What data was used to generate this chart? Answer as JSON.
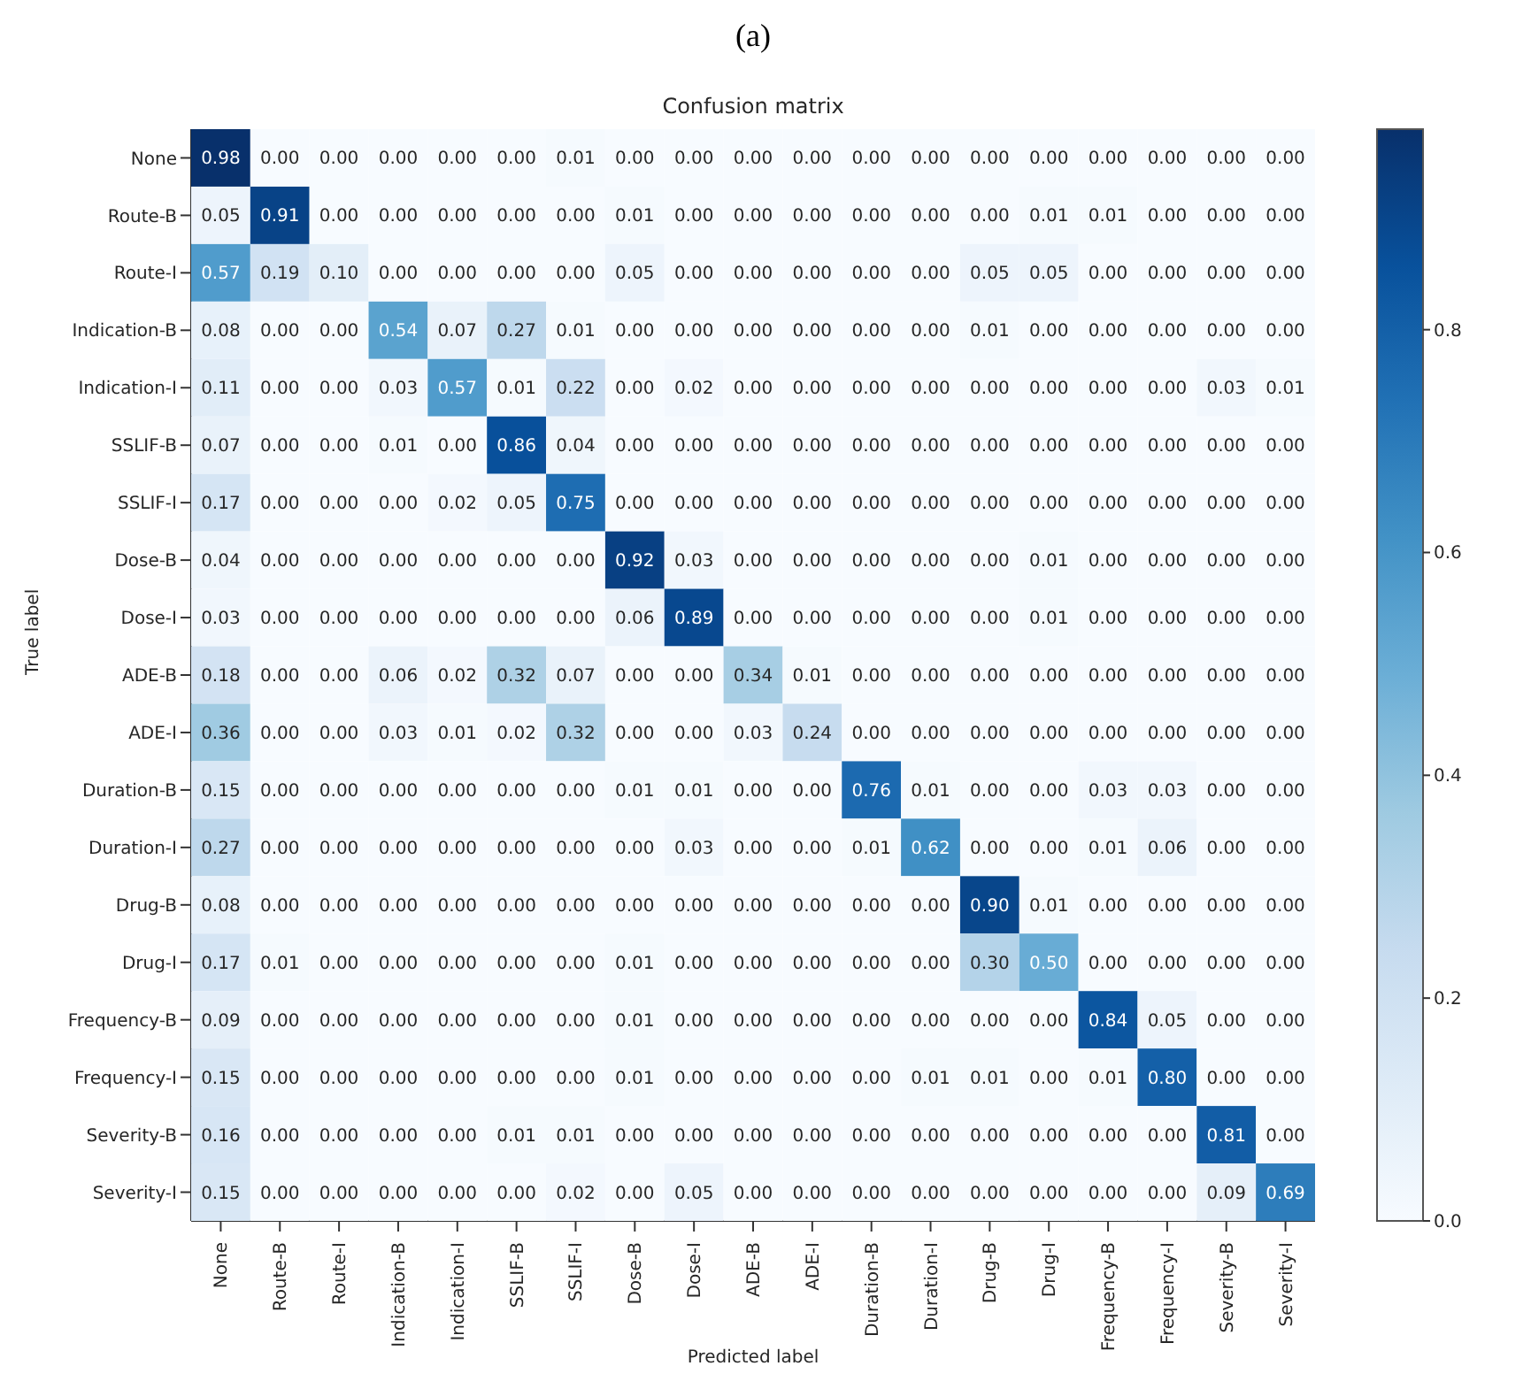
{
  "chart_data": {
    "type": "heatmap",
    "title": "Confusion matrix",
    "xlabel": "Predicted label",
    "ylabel": "True label",
    "annotations": [
      "(a)"
    ],
    "categories": [
      "None",
      "Route-B",
      "Route-I",
      "Indication-B",
      "Indication-I",
      "SSLIF-B",
      "SSLIF-I",
      "Dose-B",
      "Dose-I",
      "ADE-B",
      "ADE-I",
      "Duration-B",
      "Duration-I",
      "Drug-B",
      "Drug-I",
      "Frequency-B",
      "Frequency-I",
      "Severity-B",
      "Severity-I"
    ],
    "y_categories": [
      "None",
      "Route-B",
      "Route-I",
      "Indication-B",
      "Indication-I",
      "SSLIF-B",
      "SSLIF-I",
      "Dose-B",
      "Dose-I",
      "ADE-B",
      "ADE-I",
      "Duration-B",
      "Duration-I",
      "Drug-B",
      "Drug-I",
      "Frequency-B",
      "Frequency-I",
      "Severity-B",
      "Severity-I"
    ],
    "cells": [
      [
        0.98,
        0.0,
        0.0,
        0.0,
        0.0,
        0.0,
        0.01,
        0.0,
        0.0,
        0.0,
        0.0,
        0.0,
        0.0,
        0.0,
        0.0,
        0.0,
        0.0,
        0.0,
        0.0
      ],
      [
        0.05,
        0.91,
        0.0,
        0.0,
        0.0,
        0.0,
        0.0,
        0.01,
        0.0,
        0.0,
        0.0,
        0.0,
        0.0,
        0.0,
        0.01,
        0.01,
        0.0,
        0.0,
        0.0
      ],
      [
        0.57,
        0.19,
        0.1,
        0.0,
        0.0,
        0.0,
        0.0,
        0.05,
        0.0,
        0.0,
        0.0,
        0.0,
        0.0,
        0.05,
        0.05,
        0.0,
        0.0,
        0.0,
        0.0
      ],
      [
        0.08,
        0.0,
        0.0,
        0.54,
        0.07,
        0.27,
        0.01,
        0.0,
        0.0,
        0.0,
        0.0,
        0.0,
        0.0,
        0.01,
        0.0,
        0.0,
        0.0,
        0.0,
        0.0
      ],
      [
        0.11,
        0.0,
        0.0,
        0.03,
        0.57,
        0.01,
        0.22,
        0.0,
        0.02,
        0.0,
        0.0,
        0.0,
        0.0,
        0.0,
        0.0,
        0.0,
        0.0,
        0.03,
        0.01
      ],
      [
        0.07,
        0.0,
        0.0,
        0.01,
        0.0,
        0.86,
        0.04,
        0.0,
        0.0,
        0.0,
        0.0,
        0.0,
        0.0,
        0.0,
        0.0,
        0.0,
        0.0,
        0.0,
        0.0
      ],
      [
        0.17,
        0.0,
        0.0,
        0.0,
        0.02,
        0.05,
        0.75,
        0.0,
        0.0,
        0.0,
        0.0,
        0.0,
        0.0,
        0.0,
        0.0,
        0.0,
        0.0,
        0.0,
        0.0
      ],
      [
        0.04,
        0.0,
        0.0,
        0.0,
        0.0,
        0.0,
        0.0,
        0.92,
        0.03,
        0.0,
        0.0,
        0.0,
        0.0,
        0.0,
        0.01,
        0.0,
        0.0,
        0.0,
        0.0
      ],
      [
        0.03,
        0.0,
        0.0,
        0.0,
        0.0,
        0.0,
        0.0,
        0.06,
        0.89,
        0.0,
        0.0,
        0.0,
        0.0,
        0.0,
        0.01,
        0.0,
        0.0,
        0.0,
        0.0
      ],
      [
        0.18,
        0.0,
        0.0,
        0.06,
        0.02,
        0.32,
        0.07,
        0.0,
        0.0,
        0.34,
        0.01,
        0.0,
        0.0,
        0.0,
        0.0,
        0.0,
        0.0,
        0.0,
        0.0
      ],
      [
        0.36,
        0.0,
        0.0,
        0.03,
        0.01,
        0.02,
        0.32,
        0.0,
        0.0,
        0.03,
        0.24,
        0.0,
        0.0,
        0.0,
        0.0,
        0.0,
        0.0,
        0.0,
        0.0
      ],
      [
        0.15,
        0.0,
        0.0,
        0.0,
        0.0,
        0.0,
        0.0,
        0.01,
        0.01,
        0.0,
        0.0,
        0.76,
        0.01,
        0.0,
        0.0,
        0.03,
        0.03,
        0.0,
        0.0
      ],
      [
        0.27,
        0.0,
        0.0,
        0.0,
        0.0,
        0.0,
        0.0,
        0.0,
        0.03,
        0.0,
        0.0,
        0.01,
        0.62,
        0.0,
        0.0,
        0.01,
        0.06,
        0.0,
        0.0
      ],
      [
        0.08,
        0.0,
        0.0,
        0.0,
        0.0,
        0.0,
        0.0,
        0.0,
        0.0,
        0.0,
        0.0,
        0.0,
        0.0,
        0.9,
        0.01,
        0.0,
        0.0,
        0.0,
        0.0
      ],
      [
        0.17,
        0.01,
        0.0,
        0.0,
        0.0,
        0.0,
        0.0,
        0.01,
        0.0,
        0.0,
        0.0,
        0.0,
        0.0,
        0.3,
        0.5,
        0.0,
        0.0,
        0.0,
        0.0
      ],
      [
        0.09,
        0.0,
        0.0,
        0.0,
        0.0,
        0.0,
        0.0,
        0.01,
        0.0,
        0.0,
        0.0,
        0.0,
        0.0,
        0.0,
        0.0,
        0.84,
        0.05,
        0.0,
        0.0
      ],
      [
        0.15,
        0.0,
        0.0,
        0.0,
        0.0,
        0.0,
        0.0,
        0.01,
        0.0,
        0.0,
        0.0,
        0.0,
        0.01,
        0.01,
        0.0,
        0.01,
        0.8,
        0.0,
        0.0
      ],
      [
        0.16,
        0.0,
        0.0,
        0.0,
        0.0,
        0.01,
        0.01,
        0.0,
        0.0,
        0.0,
        0.0,
        0.0,
        0.0,
        0.0,
        0.0,
        0.0,
        0.0,
        0.81,
        0.0
      ],
      [
        0.15,
        0.0,
        0.0,
        0.0,
        0.0,
        0.0,
        0.02,
        0.0,
        0.05,
        0.0,
        0.0,
        0.0,
        0.0,
        0.0,
        0.0,
        0.0,
        0.0,
        0.09,
        0.69
      ]
    ],
    "cell_labels": [
      [
        "0.98",
        "0.00",
        "0.00",
        "0.00",
        "0.00",
        "0.00",
        "0.01",
        "0.00",
        "0.00",
        "0.00",
        "0.00",
        "0.00",
        "0.00",
        "0.00",
        "0.00",
        "0.00",
        "0.00",
        "0.00",
        "0.00"
      ],
      [
        "0.05",
        "0.91",
        "0.00",
        "0.00",
        "0.00",
        "0.00",
        "0.00",
        "0.01",
        "0.00",
        "0.00",
        "0.00",
        "0.00",
        "0.00",
        "0.00",
        "0.01",
        "0.01",
        "0.00",
        "0.00",
        "0.00"
      ],
      [
        "0.57",
        "0.19",
        "0.10",
        "0.00",
        "0.00",
        "0.00",
        "0.00",
        "0.05",
        "0.00",
        "0.00",
        "0.00",
        "0.00",
        "0.00",
        "0.05",
        "0.05",
        "0.00",
        "0.00",
        "0.00",
        "0.00"
      ],
      [
        "0.08",
        "0.00",
        "0.00",
        "0.54",
        "0.07",
        "0.27",
        "0.01",
        "0.00",
        "0.00",
        "0.00",
        "0.00",
        "0.00",
        "0.00",
        "0.01",
        "0.00",
        "0.00",
        "0.00",
        "0.00",
        "0.00"
      ],
      [
        "0.11",
        "0.00",
        "0.00",
        "0.03",
        "0.57",
        "0.01",
        "0.22",
        "0.00",
        "0.02",
        "0.00",
        "0.00",
        "0.00",
        "0.00",
        "0.00",
        "0.00",
        "0.00",
        "0.00",
        "0.03",
        "0.01"
      ],
      [
        "0.07",
        "0.00",
        "0.00",
        "0.01",
        "0.00",
        "0.86",
        "0.04",
        "0.00",
        "0.00",
        "0.00",
        "0.00",
        "0.00",
        "0.00",
        "0.00",
        "0.00",
        "0.00",
        "0.00",
        "0.00",
        "0.00"
      ],
      [
        "0.17",
        "0.00",
        "0.00",
        "0.00",
        "0.02",
        "0.05",
        "0.75",
        "0.00",
        "0.00",
        "0.00",
        "0.00",
        "0.00",
        "0.00",
        "0.00",
        "0.00",
        "0.00",
        "0.00",
        "0.00",
        "0.00"
      ],
      [
        "0.04",
        "0.00",
        "0.00",
        "0.00",
        "0.00",
        "0.00",
        "0.00",
        "0.92",
        "0.03",
        "0.00",
        "0.00",
        "0.00",
        "0.00",
        "0.00",
        "0.01",
        "0.00",
        "0.00",
        "0.00",
        "0.00"
      ],
      [
        "0.03",
        "0.00",
        "0.00",
        "0.00",
        "0.00",
        "0.00",
        "0.00",
        "0.06",
        "0.89",
        "0.00",
        "0.00",
        "0.00",
        "0.00",
        "0.00",
        "0.01",
        "0.00",
        "0.00",
        "0.00",
        "0.00"
      ],
      [
        "0.18",
        "0.00",
        "0.00",
        "0.06",
        "0.02",
        "0.32",
        "0.07",
        "0.00",
        "0.00",
        "0.34",
        "0.01",
        "0.00",
        "0.00",
        "0.00",
        "0.00",
        "0.00",
        "0.00",
        "0.00",
        "0.00"
      ],
      [
        "0.36",
        "0.00",
        "0.00",
        "0.03",
        "0.01",
        "0.02",
        "0.32",
        "0.00",
        "0.00",
        "0.03",
        "0.24",
        "0.00",
        "0.00",
        "0.00",
        "0.00",
        "0.00",
        "0.00",
        "0.00",
        "0.00"
      ],
      [
        "0.15",
        "0.00",
        "0.00",
        "0.00",
        "0.00",
        "0.00",
        "0.00",
        "0.01",
        "0.01",
        "0.00",
        "0.00",
        "0.76",
        "0.01",
        "0.00",
        "0.00",
        "0.03",
        "0.03",
        "0.00",
        "0.00"
      ],
      [
        "0.27",
        "0.00",
        "0.00",
        "0.00",
        "0.00",
        "0.00",
        "0.00",
        "0.00",
        "0.03",
        "0.00",
        "0.00",
        "0.01",
        "0.62",
        "0.00",
        "0.00",
        "0.01",
        "0.06",
        "0.00",
        "0.00"
      ],
      [
        "0.08",
        "0.00",
        "0.00",
        "0.00",
        "0.00",
        "0.00",
        "0.00",
        "0.00",
        "0.00",
        "0.00",
        "0.00",
        "0.00",
        "0.00",
        "0.90",
        "0.01",
        "0.00",
        "0.00",
        "0.00",
        "0.00"
      ],
      [
        "0.17",
        "0.01",
        "0.00",
        "0.00",
        "0.00",
        "0.00",
        "0.00",
        "0.01",
        "0.00",
        "0.00",
        "0.00",
        "0.00",
        "0.00",
        "0.30",
        "0.50",
        "0.00",
        "0.00",
        "0.00",
        "0.00"
      ],
      [
        "0.09",
        "0.00",
        "0.00",
        "0.00",
        "0.00",
        "0.00",
        "0.00",
        "0.01",
        "0.00",
        "0.00",
        "0.00",
        "0.00",
        "0.00",
        "0.00",
        "0.00",
        "0.84",
        "0.05",
        "0.00",
        "0.00"
      ],
      [
        "0.15",
        "0.00",
        "0.00",
        "0.00",
        "0.00",
        "0.00",
        "0.00",
        "0.01",
        "0.00",
        "0.00",
        "0.00",
        "0.00",
        "0.01",
        "0.01",
        "0.00",
        "0.01",
        "0.80",
        "0.00",
        "0.00"
      ],
      [
        "0.16",
        "0.00",
        "0.00",
        "0.00",
        "0.00",
        "0.01",
        "0.01",
        "0.00",
        "0.00",
        "0.00",
        "0.00",
        "0.00",
        "0.00",
        "0.00",
        "0.00",
        "0.00",
        "0.00",
        "0.81",
        "0.00"
      ],
      [
        "0.15",
        "0.00",
        "0.00",
        "0.00",
        "0.00",
        "0.00",
        "0.02",
        "0.00",
        "0.05",
        "0.00",
        "0.00",
        "0.00",
        "0.00",
        "0.00",
        "0.00",
        "0.00",
        "0.00",
        "0.09",
        "0.69"
      ]
    ],
    "clim": [
      0,
      0.98
    ],
    "cticks": [
      {
        "value": 0,
        "label": "0.0"
      },
      {
        "value": 0.2,
        "label": "0.2"
      },
      {
        "value": 0.4,
        "label": "0.4"
      },
      {
        "value": 0.6,
        "label": "0.6"
      },
      {
        "value": 0.8,
        "label": "0.8"
      }
    ],
    "data_labels": true
  }
}
